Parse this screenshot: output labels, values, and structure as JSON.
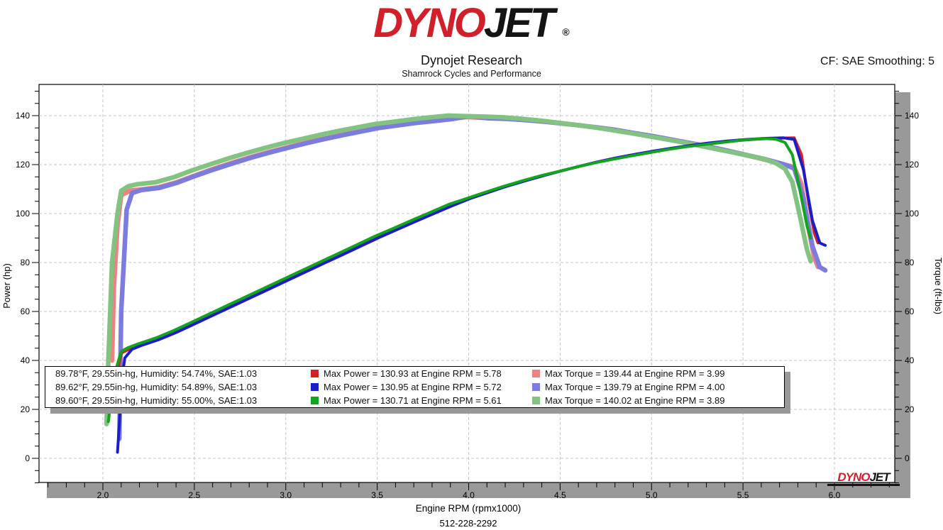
{
  "header": {
    "logo": {
      "part1": "DYNO",
      "part2": "JET",
      "registered": "®",
      "red": "#d2202a",
      "black": "#141414"
    },
    "title": "Dynojet Research",
    "subtitle": "Shamrock Cycles and Performance",
    "cf_label": "CF: SAE Smoothing: 5"
  },
  "footer": {
    "phone": "512-228-2292"
  },
  "watermark": {
    "part1": "DYNO",
    "part2": "JET"
  },
  "legend": {
    "rows": [
      {
        "env": "89.78°F, 29.55in-hg, Humidity: 54.74%, SAE:1.03",
        "power_color": "#d42222",
        "power_label": "Max Power = 130.93 at Engine RPM = 5.78",
        "torque_color": "#ee8282",
        "torque_label": "Max Torque = 139.44 at Engine RPM = 3.99"
      },
      {
        "env": "89.62°F, 29.55in-hg, Humidity: 54.89%, SAE:1.03",
        "power_color": "#1c1ccc",
        "power_label": "Max Power = 130.95 at Engine RPM = 5.72",
        "torque_color": "#7b7be0",
        "torque_label": "Max Torque = 139.79 at Engine RPM = 4.00"
      },
      {
        "env": "89.60°F, 29.55in-hg, Humidity: 55.00%, SAE:1.03",
        "power_color": "#10a51c",
        "power_label": "Max Power = 130.71 at Engine RPM = 5.61",
        "torque_color": "#82c382",
        "torque_label": "Max Torque = 140.02 at Engine RPM = 3.89"
      }
    ]
  },
  "chart_data": {
    "type": "line",
    "grid": true,
    "legend_position": "bottom-left-box",
    "x_axis": {
      "title": "Engine RPM (rpmx1000)",
      "ticks": [
        2.0,
        2.5,
        3.0,
        3.5,
        4.0,
        4.5,
        5.0,
        5.5,
        6.0
      ],
      "minor_step": 0.1,
      "range": [
        1.66,
        6.33
      ]
    },
    "y_axis_left": {
      "title": "Power (hp)",
      "ticks": [
        0,
        20,
        40,
        60,
        80,
        100,
        120,
        140
      ],
      "minor_step": 5,
      "range": [
        -10,
        152
      ]
    },
    "y_axis_right": {
      "title": "Torque (ft-lbs)",
      "ticks": [
        0,
        20,
        40,
        60,
        80,
        100,
        120,
        140
      ],
      "minor_step": 5,
      "range": [
        -10,
        152
      ]
    },
    "series": [
      {
        "id": "run1-torque",
        "name": "Run 1 Torque (ft-lbs)",
        "color": "#ee8282",
        "width": 6.5,
        "max": {
          "value": 139.44,
          "rpm": 3.99
        },
        "x": [
          2.05,
          2.06,
          2.08,
          2.1,
          2.15,
          2.2,
          2.3,
          2.4,
          2.5,
          2.6,
          2.7,
          2.8,
          2.9,
          3.0,
          3.1,
          3.2,
          3.3,
          3.4,
          3.5,
          3.6,
          3.7,
          3.8,
          3.9,
          3.99,
          4.1,
          4.2,
          4.3,
          4.4,
          4.5,
          4.6,
          4.7,
          4.8,
          4.9,
          5.0,
          5.1,
          5.2,
          5.3,
          5.4,
          5.5,
          5.6,
          5.7,
          5.78,
          5.82,
          5.86,
          5.89,
          5.91
        ],
        "y": [
          40,
          70,
          95,
          107.5,
          109.4,
          109.8,
          110.7,
          112.7,
          115.5,
          118.2,
          120.6,
          122.9,
          125.0,
          126.9,
          128.8,
          130.5,
          132.1,
          133.6,
          135.1,
          136.1,
          137.1,
          137.9,
          138.7,
          139.44,
          139.0,
          138.8,
          138.3,
          137.6,
          136.9,
          136.1,
          135.2,
          134.2,
          132.9,
          131.6,
          130.3,
          128.9,
          127.4,
          125.9,
          124.1,
          122.4,
          120.5,
          119.0,
          111.9,
          93.2,
          82.0,
          78.2
        ]
      },
      {
        "id": "run2-torque",
        "name": "Run 2 Torque (ft-lbs)",
        "color": "#7b7be0",
        "width": 6.5,
        "max": {
          "value": 139.79,
          "rpm": 4.0
        },
        "x": [
          2.09,
          2.1,
          2.13,
          2.16,
          2.21,
          2.31,
          2.41,
          2.51,
          2.61,
          2.71,
          2.81,
          2.91,
          3.01,
          3.11,
          3.21,
          3.31,
          3.41,
          3.51,
          3.61,
          3.71,
          3.81,
          3.91,
          4.0,
          4.11,
          4.21,
          4.31,
          4.41,
          4.51,
          4.61,
          4.71,
          4.81,
          4.91,
          5.01,
          5.11,
          5.21,
          5.31,
          5.41,
          5.51,
          5.61,
          5.72,
          5.78,
          5.83,
          5.88,
          5.92,
          5.95
        ],
        "y": [
          8,
          60,
          101.6,
          108.4,
          109.6,
          110.5,
          112.7,
          115.5,
          118.1,
          120.5,
          122.8,
          124.9,
          126.8,
          128.7,
          130.4,
          132.0,
          133.5,
          135.0,
          136.0,
          137.0,
          137.8,
          138.6,
          139.79,
          138.9,
          138.7,
          138.2,
          137.6,
          136.8,
          136.0,
          135.1,
          134.1,
          132.8,
          131.6,
          130.2,
          128.8,
          127.4,
          125.8,
          124.1,
          122.4,
          120.2,
          118.4,
          106.3,
          86.6,
          78.1,
          76.8
        ]
      },
      {
        "id": "run3-torque",
        "name": "Run 3 Torque (ft-lbs)",
        "color": "#82c382",
        "width": 6.5,
        "max": {
          "value": 140.02,
          "rpm": 3.89
        },
        "x": [
          2.02,
          2.03,
          2.05,
          2.08,
          2.1,
          2.14,
          2.19,
          2.29,
          2.39,
          2.49,
          2.59,
          2.69,
          2.79,
          2.89,
          2.99,
          3.09,
          3.19,
          3.29,
          3.39,
          3.49,
          3.59,
          3.69,
          3.79,
          3.89,
          3.99,
          4.09,
          4.19,
          4.29,
          4.39,
          4.49,
          4.59,
          4.69,
          4.79,
          4.89,
          4.99,
          5.09,
          5.19,
          5.29,
          5.39,
          5.49,
          5.61,
          5.68,
          5.73,
          5.77,
          5.81,
          5.85,
          5.87
        ],
        "y": [
          14,
          40,
          80,
          100,
          109.3,
          111.2,
          112.0,
          112.8,
          114.9,
          117.7,
          120.2,
          122.6,
          124.8,
          126.9,
          128.8,
          130.5,
          132.2,
          133.8,
          135.2,
          136.6,
          137.5,
          138.5,
          139.3,
          140.02,
          139.8,
          139.6,
          139.3,
          138.7,
          138.0,
          137.1,
          136.2,
          135.2,
          134.0,
          132.8,
          131.5,
          130.2,
          128.8,
          127.3,
          125.8,
          124.3,
          122.4,
          120.6,
          118.2,
          112.9,
          99.4,
          85.3,
          80.5
        ]
      },
      {
        "id": "run1-power",
        "name": "Run 1 Power (hp)",
        "color": "#d42222",
        "width": 4,
        "max": {
          "value": 130.93,
          "rpm": 5.78
        },
        "x": [
          2.06,
          2.08,
          2.1,
          2.15,
          2.2,
          2.3,
          2.4,
          2.5,
          2.6,
          2.7,
          2.8,
          2.9,
          3.0,
          3.1,
          3.2,
          3.3,
          3.4,
          3.5,
          3.6,
          3.7,
          3.8,
          3.9,
          4.0,
          4.1,
          4.2,
          4.3,
          4.4,
          4.5,
          4.6,
          4.7,
          4.8,
          4.9,
          5.0,
          5.1,
          5.2,
          5.3,
          5.4,
          5.5,
          5.6,
          5.7,
          5.78,
          5.82,
          5.86,
          5.89,
          5.91
        ],
        "y": [
          25,
          35,
          43,
          44.8,
          46,
          48.5,
          51.5,
          55,
          58.5,
          62,
          65.5,
          69,
          72.5,
          76,
          79.5,
          83,
          86.5,
          90,
          93.3,
          96.6,
          99.8,
          103,
          106,
          108.5,
          111,
          113.2,
          115.3,
          117.3,
          119.2,
          121,
          122.6,
          124,
          125.3,
          126.5,
          127.6,
          128.6,
          129.4,
          130,
          130.5,
          130.8,
          130.93,
          124,
          104,
          92,
          88
        ]
      },
      {
        "id": "run2-power",
        "name": "Run 2 Power (hp)",
        "color": "#1c1ccc",
        "width": 4,
        "max": {
          "value": 130.95,
          "rpm": 5.72
        },
        "x": [
          2.08,
          2.09,
          2.1,
          2.12,
          2.16,
          2.21,
          2.31,
          2.41,
          2.51,
          2.61,
          2.71,
          2.81,
          2.91,
          3.01,
          3.11,
          3.21,
          3.31,
          3.41,
          3.51,
          3.61,
          3.71,
          3.81,
          3.91,
          4.01,
          4.11,
          4.21,
          4.31,
          4.41,
          4.51,
          4.61,
          4.71,
          4.81,
          4.91,
          5.01,
          5.11,
          5.21,
          5.31,
          5.41,
          5.51,
          5.61,
          5.72,
          5.78,
          5.83,
          5.88,
          5.92,
          5.95
        ],
        "y": [
          2.5,
          14,
          30,
          41,
          44.6,
          46.1,
          48.6,
          51.7,
          55.2,
          58.7,
          62.2,
          65.7,
          69.2,
          72.7,
          76.2,
          79.7,
          83.2,
          86.7,
          90.2,
          93.5,
          96.8,
          100,
          103.2,
          106.2,
          108.7,
          111.2,
          113.4,
          115.5,
          117.5,
          119.4,
          121.2,
          122.8,
          124.2,
          125.5,
          126.7,
          127.8,
          128.8,
          129.6,
          130.2,
          130.7,
          130.95,
          130.3,
          118,
          97,
          88,
          87
        ]
      },
      {
        "id": "run3-power",
        "name": "Run 3 Power (hp)",
        "color": "#10a51c",
        "width": 4,
        "max": {
          "value": 130.71,
          "rpm": 5.61
        },
        "x": [
          2.03,
          2.05,
          2.07,
          2.1,
          2.14,
          2.19,
          2.29,
          2.39,
          2.49,
          2.59,
          2.69,
          2.79,
          2.89,
          2.99,
          3.09,
          3.19,
          3.29,
          3.39,
          3.49,
          3.59,
          3.69,
          3.79,
          3.89,
          3.99,
          4.09,
          4.19,
          4.29,
          4.39,
          4.49,
          4.59,
          4.69,
          4.79,
          4.89,
          4.99,
          5.09,
          5.19,
          5.29,
          5.39,
          5.49,
          5.61,
          5.68,
          5.73,
          5.77,
          5.81,
          5.85,
          5.87
        ],
        "y": [
          15,
          27,
          36,
          43.7,
          45.3,
          46.7,
          49.2,
          52.3,
          55.8,
          59.3,
          62.8,
          66.3,
          69.8,
          73.3,
          76.8,
          80.3,
          83.8,
          87.3,
          90.8,
          94,
          97.3,
          100.5,
          103.7,
          106.2,
          108.7,
          111.1,
          113.3,
          115.4,
          117.2,
          119.0,
          120.7,
          122.2,
          123.6,
          124.9,
          126.2,
          127.3,
          128.2,
          129.1,
          129.9,
          130.71,
          130.4,
          129,
          124,
          110,
          95,
          90
        ]
      }
    ]
  }
}
